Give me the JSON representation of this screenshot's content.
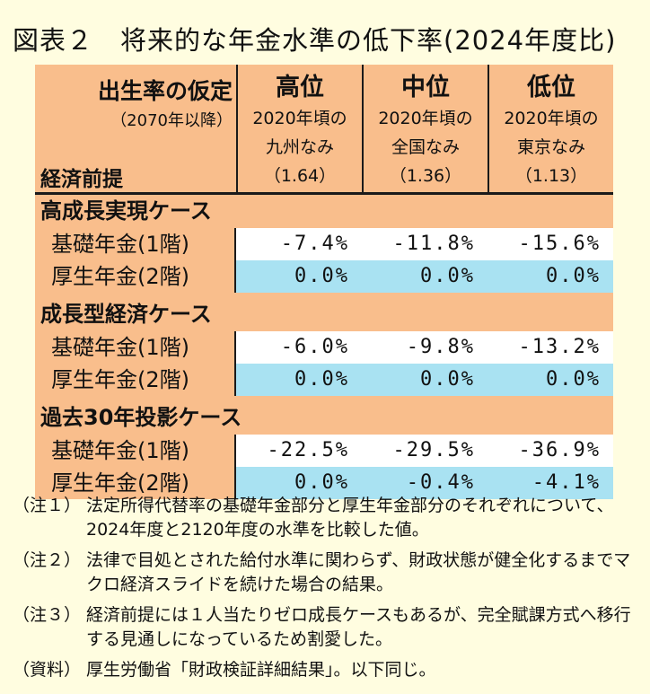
{
  "title": "図表２　将来的な年金水準の低下率(2024年度比)",
  "header": {
    "row1_label": "出生率の仮定",
    "row2_label": "（2070年以降）",
    "row3_label": "経済前提",
    "columns": [
      {
        "level": "高位",
        "line1": "2020年頃の",
        "line2": "九州なみ",
        "value": "（1.64）"
      },
      {
        "level": "中位",
        "line1": "2020年頃の",
        "line2": "全国なみ",
        "value": "（1.36）"
      },
      {
        "level": "低位",
        "line1": "2020年頃の",
        "line2": "東京なみ",
        "value": "（1.13）"
      }
    ]
  },
  "cases": [
    {
      "name": "高成長実現ケース",
      "rows": [
        {
          "label": "基礎年金(1階)",
          "values": [
            "-7.4%",
            "-11.8%",
            "-15.6%"
          ]
        },
        {
          "label": "厚生年金(2階)",
          "values": [
            "0.0%",
            "0.0%",
            "0.0%"
          ]
        }
      ]
    },
    {
      "name": "成長型経済ケース",
      "rows": [
        {
          "label": "基礎年金(1階)",
          "values": [
            "-6.0%",
            "-9.8%",
            "-13.2%"
          ]
        },
        {
          "label": "厚生年金(2階)",
          "values": [
            "0.0%",
            "0.0%",
            "0.0%"
          ]
        }
      ]
    },
    {
      "name": "過去30年投影ケース",
      "rows": [
        {
          "label": "基礎年金(1階)",
          "values": [
            "-22.5%",
            "-29.5%",
            "-36.9%"
          ]
        },
        {
          "label": "厚生年金(2階)",
          "values": [
            "0.0%",
            "-0.4%",
            "-4.1%"
          ]
        }
      ]
    }
  ],
  "notes": [
    {
      "tag": "（注１）",
      "text": "法定所得代替率の基礎年金部分と厚生年金部分のそれぞれについて、2024年度と2120年度の水準を比較した値。"
    },
    {
      "tag": "（注２）",
      "text": "法律で目処とされた給付水準に関わらず、財政状態が健全化するまでマクロ経済スライドを続けた場合の結果。"
    },
    {
      "tag": "（注３）",
      "text": "経済前提には１人当たりゼロ成長ケースもあるが、完全賦課方式へ移行する見通しになっているため割愛した。"
    },
    {
      "tag": "（資料）",
      "text": "厚生労働省「財政検証詳細結果」。以下同じ。"
    }
  ],
  "colors": {
    "background": "#fffde0",
    "table": "#f9be8c",
    "row_white": "#ffffff",
    "row_blue": "#a9e2f2"
  }
}
